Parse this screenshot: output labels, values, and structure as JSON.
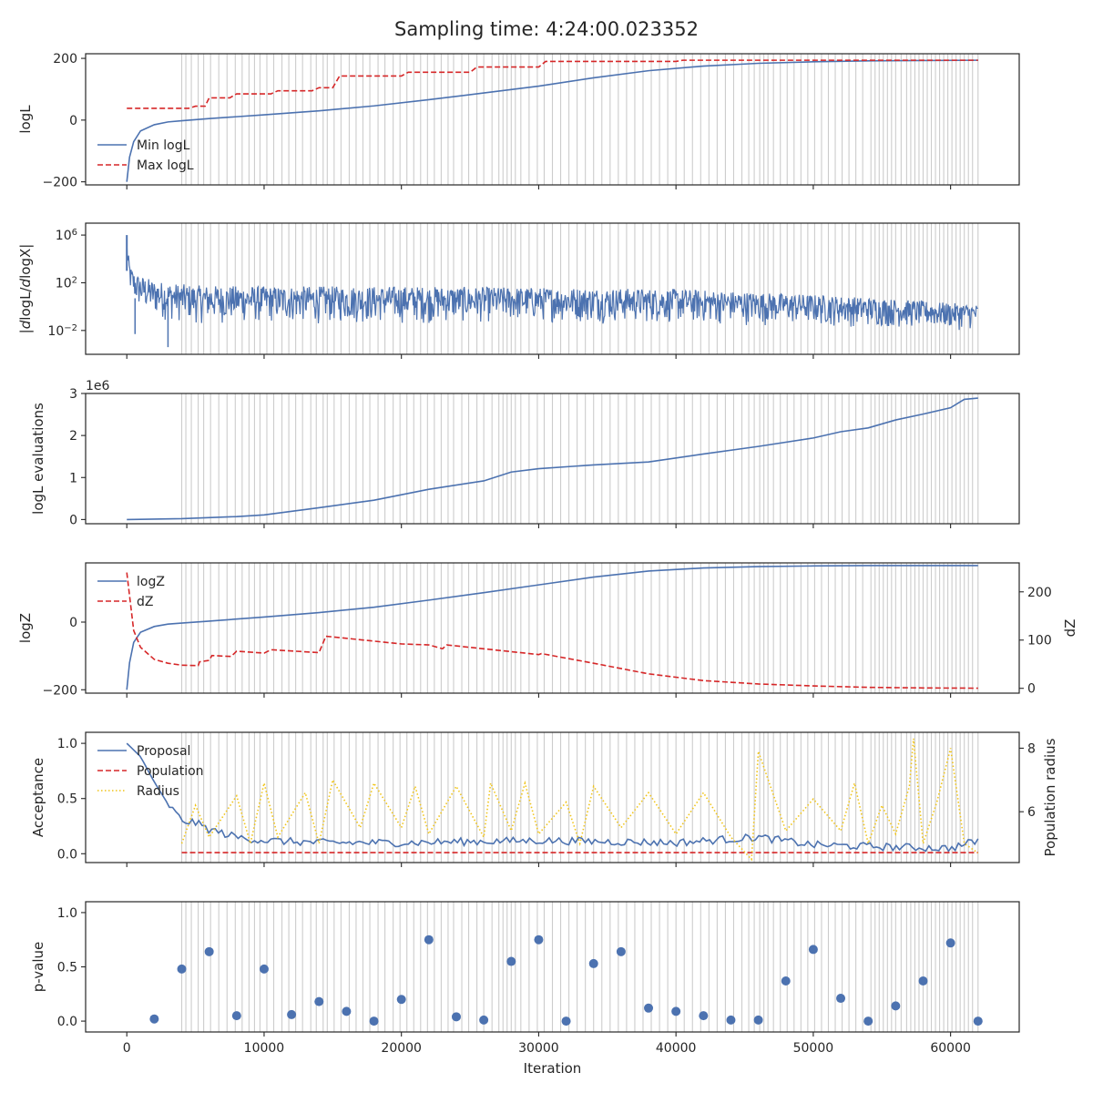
{
  "title": "Sampling time: 4:24:00.023352",
  "chart_data": [
    {
      "type": "line",
      "ylabel": "logL",
      "ylim": [
        -210,
        215
      ],
      "yticks": [
        {
          "v": -200,
          "label": "−200"
        },
        {
          "v": 0,
          "label": "0"
        },
        {
          "v": 200,
          "label": "200"
        }
      ],
      "legend": "top-left (lower left of panel)",
      "series": [
        {
          "name": "Min logL",
          "color": "#4c72b0",
          "dash": "solid",
          "x": [
            0,
            200,
            500,
            1000,
            2000,
            3000,
            4000,
            6000,
            8000,
            10000,
            14000,
            18000,
            22000,
            26000,
            30000,
            34000,
            38000,
            42000,
            46000,
            50000,
            54000,
            58000,
            62000
          ],
          "y": [
            -200,
            -120,
            -70,
            -35,
            -15,
            -6,
            -2,
            5,
            11,
            17,
            30,
            46,
            66,
            88,
            110,
            137,
            160,
            175,
            184,
            189,
            192,
            193,
            194
          ]
        },
        {
          "name": "Max logL",
          "color": "#d62728",
          "dash": "dashed",
          "x": [
            0,
            4500,
            5000,
            5700,
            6000,
            7500,
            8000,
            10500,
            11000,
            13500,
            14000,
            15000,
            15500,
            20000,
            20500,
            25000,
            25500,
            30000,
            30500,
            40000,
            40500,
            62000
          ],
          "y": [
            38,
            38,
            45,
            45,
            72,
            72,
            85,
            85,
            95,
            95,
            105,
            105,
            143,
            143,
            155,
            155,
            172,
            172,
            190,
            190,
            194,
            194
          ]
        }
      ]
    },
    {
      "type": "line",
      "ylabel": "|dlogL/dlogX|",
      "yscale": "log",
      "ylim": [
        0.0001,
        10000000
      ],
      "yticks": [
        {
          "v": 0.01,
          "label": "10",
          "exp": "−2"
        },
        {
          "v": 100,
          "label": "10",
          "exp": "2"
        },
        {
          "v": 1000000,
          "label": "10",
          "exp": "6"
        }
      ],
      "series": [
        {
          "name": "",
          "color": "#4c72b0",
          "x": [
            0,
            100,
            300,
            600,
            1000,
            2000,
            3000,
            5000,
            10000,
            20000,
            30000,
            40000,
            50000,
            55000,
            60000,
            62000
          ],
          "upper": [
            1000000,
            30000,
            2000,
            600,
            400,
            150,
            100,
            60,
            50,
            50,
            40,
            30,
            10,
            5,
            2,
            1.5
          ],
          "lower": [
            1000,
            50,
            5,
            1,
            0.3,
            0.1,
            0.05,
            0.03,
            0.03,
            0.03,
            0.04,
            0.03,
            0.02,
            0.015,
            0.01,
            0.01
          ],
          "spikes": [
            {
              "x": 3000,
              "y": 0.0004
            },
            {
              "x": 600,
              "y": 0.005
            }
          ]
        }
      ]
    },
    {
      "type": "line",
      "ylabel": "logL evaluations",
      "offset_text": "1e6",
      "ylim": [
        -0.1,
        3.0
      ],
      "yticks": [
        {
          "v": 0,
          "label": "0"
        },
        {
          "v": 1,
          "label": "1"
        },
        {
          "v": 2,
          "label": "2"
        },
        {
          "v": 3,
          "label": "3"
        }
      ],
      "series": [
        {
          "name": "",
          "color": "#4c72b0",
          "x": [
            0,
            4000,
            8000,
            10000,
            14000,
            18000,
            22000,
            26000,
            28000,
            30000,
            34000,
            38000,
            42000,
            46000,
            50000,
            52000,
            54000,
            56000,
            58000,
            60000,
            61000,
            62000
          ],
          "y": [
            0.0,
            0.02,
            0.07,
            0.11,
            0.28,
            0.46,
            0.72,
            0.92,
            1.13,
            1.21,
            1.3,
            1.37,
            1.56,
            1.74,
            1.94,
            2.09,
            2.18,
            2.37,
            2.51,
            2.66,
            2.86,
            2.89
          ]
        }
      ]
    },
    {
      "type": "line",
      "ylabel": "logZ",
      "ylabel_right": "dZ",
      "ylim": [
        -210,
        175
      ],
      "ylim_right": [
        -10,
        260
      ],
      "yticks": [
        {
          "v": -200,
          "label": "−200"
        },
        {
          "v": 0,
          "label": "0"
        }
      ],
      "yticks_right": [
        {
          "v": 0,
          "label": "0"
        },
        {
          "v": 100,
          "label": "100"
        },
        {
          "v": 200,
          "label": "200"
        }
      ],
      "legend": "top-left",
      "series": [
        {
          "name": "logZ",
          "color": "#4c72b0",
          "dash": "solid",
          "axis": "left",
          "x": [
            0,
            200,
            500,
            1000,
            2000,
            3000,
            4000,
            6000,
            10000,
            14000,
            18000,
            22000,
            26000,
            30000,
            34000,
            38000,
            42000,
            46000,
            50000,
            54000,
            58000,
            62000
          ],
          "y": [
            -200,
            -120,
            -60,
            -30,
            -13,
            -6,
            -3,
            3,
            15,
            28,
            44,
            65,
            87,
            110,
            133,
            151,
            160,
            164,
            166,
            167,
            167,
            167
          ]
        },
        {
          "name": "dZ",
          "color": "#d62728",
          "dash": "dashed",
          "axis": "right",
          "x": [
            0,
            500,
            1000,
            2000,
            3000,
            4000,
            5200,
            5300,
            6000,
            6200,
            7600,
            8000,
            10000,
            10500,
            14000,
            14500,
            20000,
            22000,
            23000,
            23300,
            30000,
            30200,
            34000,
            38000,
            42000,
            46000,
            50000,
            54000,
            58000,
            62000
          ],
          "y": [
            240,
            120,
            85,
            60,
            52,
            48,
            47,
            55,
            58,
            68,
            66,
            77,
            73,
            80,
            74,
            108,
            92,
            90,
            82,
            90,
            70,
            72,
            52,
            30,
            16,
            9,
            5,
            2,
            0.8,
            0.3
          ]
        }
      ]
    },
    {
      "type": "line",
      "ylabel": "Acceptance",
      "ylabel_right": "Population radius",
      "ylim": [
        -0.08,
        1.1
      ],
      "ylim_right": [
        4.4,
        8.5
      ],
      "yticks": [
        {
          "v": 0,
          "label": "0.0"
        },
        {
          "v": 0.5,
          "label": "0.5"
        },
        {
          "v": 1,
          "label": "1.0"
        }
      ],
      "yticks_right": [
        {
          "v": 6,
          "label": "6"
        },
        {
          "v": 8,
          "label": "8"
        }
      ],
      "legend": "top-left",
      "series": [
        {
          "name": "Proposal",
          "color": "#4c72b0",
          "dash": "solid",
          "axis": "left",
          "x": [
            0,
            1000,
            2000,
            3000,
            4000,
            5000,
            6000,
            8000,
            10000,
            14000,
            20000,
            30000,
            40000,
            46000,
            50000,
            56000,
            60000,
            62000
          ],
          "y": [
            1.0,
            0.88,
            0.65,
            0.45,
            0.3,
            0.28,
            0.22,
            0.15,
            0.12,
            0.1,
            0.1,
            0.12,
            0.1,
            0.15,
            0.08,
            0.06,
            0.05,
            0.12
          ]
        },
        {
          "name": "Population",
          "color": "#d62728",
          "dash": "dashed",
          "axis": "left",
          "x": [
            4000,
            62000
          ],
          "y": [
            0.01,
            0.01
          ]
        },
        {
          "name": "Radius",
          "color": "#f0c419",
          "dash": "dotted",
          "axis": "right",
          "x": [
            4000,
            5000,
            6000,
            8000,
            9000,
            10000,
            11000,
            13000,
            14000,
            15000,
            17000,
            18000,
            20000,
            21000,
            22000,
            24000,
            26000,
            26500,
            28000,
            29000,
            30000,
            32000,
            33000,
            34000,
            36000,
            38000,
            40000,
            42000,
            44000,
            45500,
            46000,
            48000,
            50000,
            52000,
            53000,
            54000,
            55000,
            56000,
            57000,
            57300,
            58000,
            59000,
            60000,
            61000,
            62000
          ],
          "y": [
            5.0,
            6.2,
            5.2,
            6.5,
            5.0,
            6.9,
            5.2,
            6.6,
            5.0,
            7.0,
            5.5,
            6.9,
            5.5,
            6.8,
            5.3,
            6.8,
            5.2,
            6.9,
            5.4,
            6.9,
            5.3,
            6.3,
            5.0,
            6.8,
            5.5,
            6.6,
            5.3,
            6.6,
            5.2,
            4.5,
            7.9,
            5.4,
            6.4,
            5.4,
            6.9,
            5.0,
            6.2,
            5.3,
            6.8,
            8.3,
            5.0,
            6.3,
            8.0,
            5.0,
            4.7
          ]
        }
      ]
    },
    {
      "type": "scatter",
      "ylabel": "p-value",
      "xlabel": "Iteration",
      "ylim": [
        -0.1,
        1.1
      ],
      "xlim": [
        -3000,
        65000
      ],
      "yticks": [
        {
          "v": 0,
          "label": "0.0"
        },
        {
          "v": 0.5,
          "label": "0.5"
        },
        {
          "v": 1,
          "label": "1.0"
        }
      ],
      "xticks": [
        {
          "v": 0,
          "label": "0"
        },
        {
          "v": 10000,
          "label": "10000"
        },
        {
          "v": 20000,
          "label": "20000"
        },
        {
          "v": 30000,
          "label": "30000"
        },
        {
          "v": 40000,
          "label": "40000"
        },
        {
          "v": 50000,
          "label": "50000"
        },
        {
          "v": 60000,
          "label": "60000"
        }
      ],
      "series": [
        {
          "name": "",
          "color": "#4c72b0",
          "x": [
            2000,
            4000,
            6000,
            8000,
            10000,
            12000,
            14000,
            16000,
            18000,
            20000,
            22000,
            24000,
            26000,
            28000,
            30000,
            32000,
            34000,
            36000,
            38000,
            40000,
            42000,
            44000,
            46000,
            48000,
            50000,
            52000,
            54000,
            56000,
            58000,
            60000,
            62000
          ],
          "y": [
            0.02,
            0.48,
            0.64,
            0.05,
            0.48,
            0.06,
            0.18,
            0.09,
            0.0,
            0.2,
            0.75,
            0.04,
            0.01,
            0.55,
            0.75,
            0.0,
            0.53,
            0.64,
            0.12,
            0.09,
            0.05,
            0.01,
            0.01,
            0.37,
            0.66,
            0.21,
            0.0,
            0.14,
            0.37,
            0.72,
            0.0
          ]
        }
      ]
    }
  ],
  "update_lines": {
    "color": "#cccccc",
    "x": [
      4000,
      4300,
      4700,
      5200,
      5600,
      6100,
      6700,
      7300,
      7900,
      8400,
      8900,
      9300,
      9700,
      10200,
      10700,
      11300,
      11800,
      12300,
      12800,
      13400,
      13800,
      14300,
      14600,
      15100,
      15600,
      16200,
      16700,
      17200,
      17700,
      18300,
      18800,
      19400,
      19900,
      20400,
      20900,
      21400,
      21900,
      22400,
      22900,
      23400,
      23800,
      24400,
      24900,
      25500,
      26000,
      26600,
      27100,
      27400,
      27700,
      28000,
      28300,
      28700,
      29300,
      29900,
      30400,
      31000,
      31600,
      32200,
      32800,
      33400,
      34000,
      34600,
      35200,
      35800,
      36400,
      37000,
      37600,
      38200,
      38800,
      39400,
      40000,
      40600,
      41200,
      41800,
      42400,
      43000,
      43600,
      44200,
      44800,
      45300,
      45700,
      46100,
      46400,
      46700,
      47100,
      47600,
      48100,
      48600,
      49100,
      49600,
      50100,
      50600,
      51100,
      51600,
      52100,
      52600,
      53100,
      53600,
      54200,
      54500,
      54800,
      55100,
      55400,
      55700,
      56000,
      56400,
      56800,
      57100,
      57400,
      57700,
      58000,
      58300,
      58600,
      58900,
      59200,
      59500,
      59800,
      60100,
      60400,
      60700,
      61000,
      61300,
      61600,
      62000
    ]
  }
}
